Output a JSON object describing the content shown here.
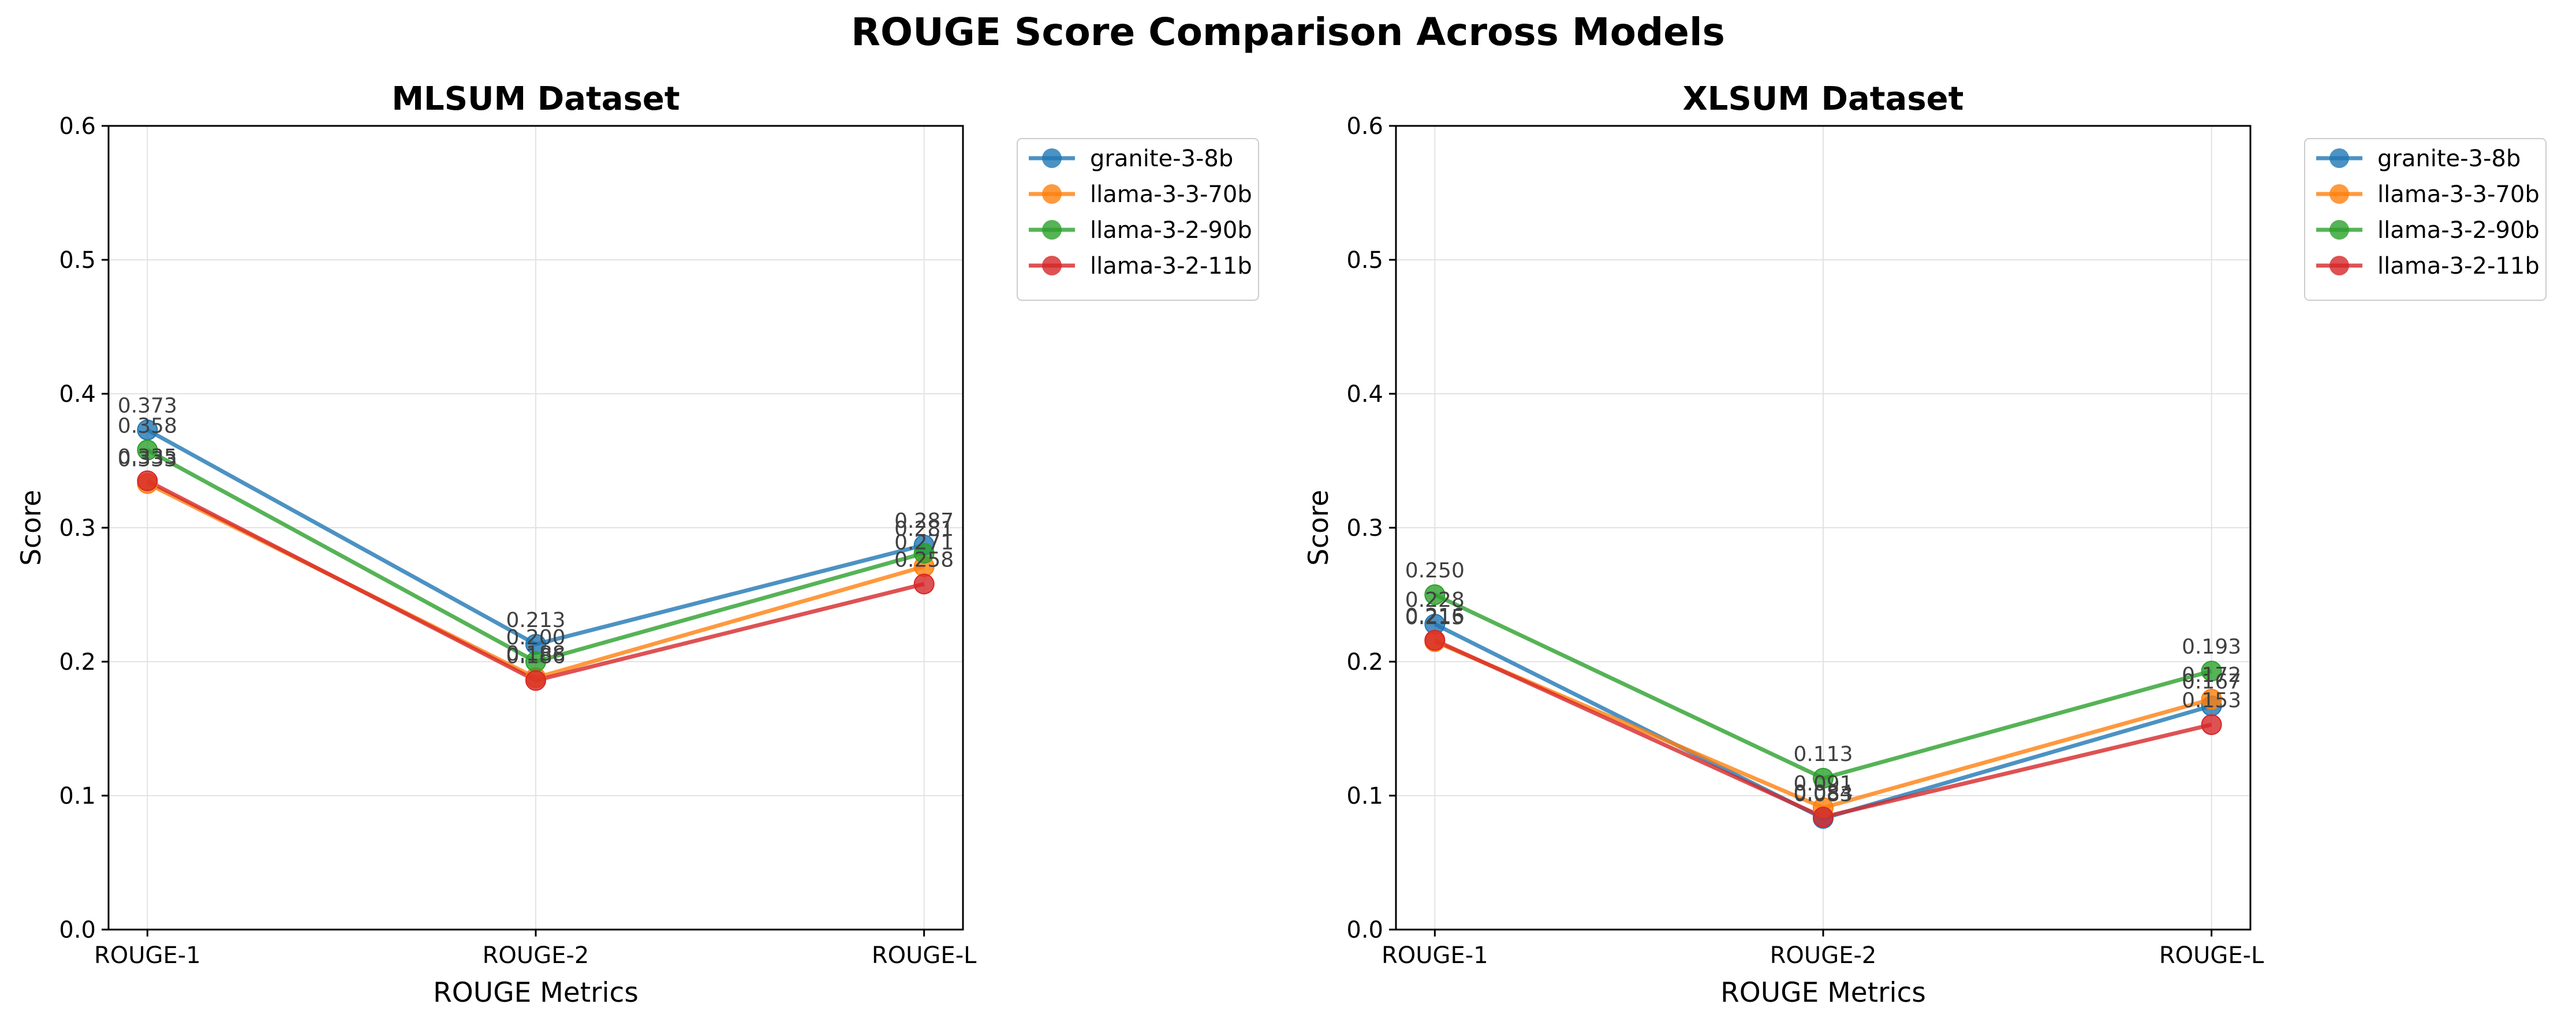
{
  "figure": {
    "title": "ROUGE Score Comparison Across Models"
  },
  "chart_data": [
    {
      "type": "line",
      "title": "MLSUM Dataset",
      "xlabel": "ROUGE Metrics",
      "ylabel": "Score",
      "categories": [
        "ROUGE-1",
        "ROUGE-2",
        "ROUGE-L"
      ],
      "ylim": [
        0,
        0.6
      ],
      "yticks": [
        "0.0",
        "0.1",
        "0.2",
        "0.3",
        "0.4",
        "0.5",
        "0.6"
      ],
      "grid": true,
      "legend_position": "outside-top-right",
      "series": [
        {
          "name": "granite-3-8b",
          "color": "#1f77b4",
          "values": [
            0.373,
            0.213,
            0.287
          ],
          "labels": [
            "0.373",
            "0.213",
            "0.287"
          ]
        },
        {
          "name": "llama-3-3-70b",
          "color": "#ff7f0e",
          "values": [
            0.333,
            0.188,
            0.271
          ],
          "labels": [
            "0.333",
            "0.188",
            "0.271"
          ]
        },
        {
          "name": "llama-3-2-90b",
          "color": "#2ca02c",
          "values": [
            0.358,
            0.2,
            0.281
          ],
          "labels": [
            "0.358",
            "0.200",
            "0.281"
          ]
        },
        {
          "name": "llama-3-2-11b",
          "color": "#d62728",
          "values": [
            0.335,
            0.186,
            0.258
          ],
          "labels": [
            "0.335",
            "0.186",
            "0.258"
          ]
        }
      ]
    },
    {
      "type": "line",
      "title": "XLSUM Dataset",
      "xlabel": "ROUGE Metrics",
      "ylabel": "Score",
      "categories": [
        "ROUGE-1",
        "ROUGE-2",
        "ROUGE-L"
      ],
      "ylim": [
        0,
        0.6
      ],
      "yticks": [
        "0.0",
        "0.1",
        "0.2",
        "0.3",
        "0.4",
        "0.5",
        "0.6"
      ],
      "grid": true,
      "legend_position": "outside-top-right",
      "series": [
        {
          "name": "granite-3-8b",
          "color": "#1f77b4",
          "values": [
            0.228,
            0.083,
            0.167
          ],
          "labels": [
            "0.228",
            "0.083",
            "0.167"
          ]
        },
        {
          "name": "llama-3-3-70b",
          "color": "#ff7f0e",
          "values": [
            0.215,
            0.091,
            0.172
          ],
          "labels": [
            "0.215",
            "0.091",
            "0.172"
          ]
        },
        {
          "name": "llama-3-2-90b",
          "color": "#2ca02c",
          "values": [
            0.25,
            0.113,
            0.193
          ],
          "labels": [
            "0.250",
            "0.113",
            "0.193"
          ]
        },
        {
          "name": "llama-3-2-11b",
          "color": "#d62728",
          "values": [
            0.216,
            0.084,
            0.153
          ],
          "labels": [
            "0.216",
            "0.084",
            "0.153"
          ]
        }
      ]
    }
  ]
}
